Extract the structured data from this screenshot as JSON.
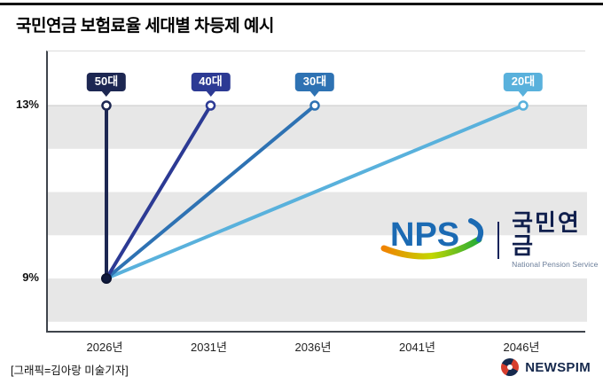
{
  "page": {
    "title": "국민연금 보험료율 세대별 차등제 예시",
    "credit": "[그래픽=김아랑 미술기자]"
  },
  "logos": {
    "nps": {
      "acronym": "NPS",
      "name_kr": "국민연금",
      "name_en": "National Pension Service",
      "blue": "#1b6ab3",
      "navy": "#13235b"
    },
    "newspim": {
      "name": "NEWSPIM",
      "navy": "#16294d",
      "red": "#d63e2e"
    }
  },
  "chart_data": {
    "type": "line",
    "title": "국민연금 보험료율 세대별 차등제 예시",
    "xlabel": "",
    "ylabel": "",
    "x_ticks": [
      {
        "label": "2026년",
        "year": 2026
      },
      {
        "label": "2031년",
        "year": 2031
      },
      {
        "label": "2036년",
        "year": 2036
      },
      {
        "label": "2041년",
        "year": 2041
      },
      {
        "label": "2046년",
        "year": 2046
      }
    ],
    "y_ticks": [
      {
        "label": "13%",
        "value": 13
      },
      {
        "label": "9%",
        "value": 9
      }
    ],
    "ylim": [
      8,
      14.3
    ],
    "grid": "alternating-horizontal-stripes",
    "legend_position": "callout-badges-above-line-endpoints",
    "start_point": {
      "year": 2026,
      "rate_pct": 9
    },
    "end_rate_pct": 13,
    "series": [
      {
        "name": "50대",
        "color": "#1d2752",
        "points": [
          [
            2026,
            9
          ],
          [
            2026,
            13
          ]
        ]
      },
      {
        "name": "40대",
        "color": "#2c3a94",
        "points": [
          [
            2026,
            9
          ],
          [
            2031,
            13
          ]
        ]
      },
      {
        "name": "30대",
        "color": "#2e72b3",
        "points": [
          [
            2026,
            9
          ],
          [
            2036,
            13
          ]
        ]
      },
      {
        "name": "20대",
        "color": "#59b1dc",
        "points": [
          [
            2026,
            9
          ],
          [
            2046,
            13
          ]
        ]
      }
    ]
  }
}
